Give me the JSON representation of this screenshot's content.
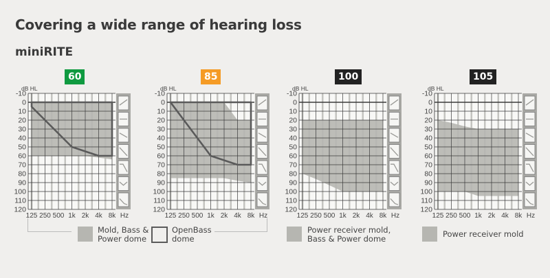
{
  "title": "Covering a wide range of hearing loss",
  "subtitle": "miniRITE",
  "colors": {
    "fill": "#b6b6b1",
    "outline": "#5a5a5a",
    "plot_bg": "#f8f8f6",
    "panel": "#a9a9a5",
    "grid": "#3a3a3a",
    "grid_light": "#c4c4c0"
  },
  "legend": [
    {
      "label_lines": [
        "Mold, Bass &",
        "Power dome"
      ],
      "style": "filled"
    },
    {
      "label_lines": [
        "OpenBass",
        "dome"
      ],
      "style": "outline"
    },
    {
      "label_lines": [
        "Power receiver mold,",
        "Bass & Power dome"
      ],
      "style": "filled"
    },
    {
      "label_lines": [
        "Power receiver mold"
      ],
      "style": "filled"
    }
  ],
  "panel_icons": [
    "rising-slope-icon",
    "flat-icon",
    "gentle-slope-icon",
    "steep-slope-icon",
    "ski-slope-icon",
    "cookie-bite-icon",
    "low-steep-icon"
  ],
  "chart_data": [
    {
      "type": "area",
      "badge": "60",
      "badge_color": "#0f9a40",
      "ylabel": "dB HL",
      "xlabel": "Hz",
      "x": [
        "125",
        "250",
        "500",
        "1k",
        "2k",
        "4k",
        "8k"
      ],
      "y_ticks": [
        -10,
        0,
        10,
        20,
        30,
        40,
        50,
        60,
        70,
        80,
        90,
        100,
        110,
        120
      ],
      "ylim": [
        -10,
        120
      ],
      "y_inverted": true,
      "grid": true,
      "series": [
        {
          "style": "filled",
          "top": [
            0,
            0,
            0,
            0,
            0,
            0,
            0
          ],
          "bottom": [
            60,
            60,
            60,
            60,
            60,
            62,
            64
          ]
        },
        {
          "style": "outline",
          "top": [
            0,
            0,
            0,
            0,
            0,
            0,
            0
          ],
          "bottom": [
            5,
            20,
            35,
            50,
            55,
            60,
            60
          ]
        }
      ]
    },
    {
      "type": "area",
      "badge": "85",
      "badge_color": "#f59b25",
      "ylabel": "dB HL",
      "xlabel": "Hz",
      "x": [
        "125",
        "250",
        "500",
        "1k",
        "2k",
        "4k",
        "8k"
      ],
      "y_ticks": [
        -10,
        0,
        10,
        20,
        30,
        40,
        50,
        60,
        70,
        80,
        90,
        100,
        110,
        120
      ],
      "ylim": [
        -10,
        120
      ],
      "y_inverted": true,
      "grid": true,
      "series": [
        {
          "style": "filled",
          "top": [
            0,
            0,
            0,
            0,
            0,
            20,
            20
          ],
          "bottom": [
            85,
            85,
            85,
            85,
            85,
            88,
            90
          ]
        },
        {
          "style": "outline",
          "top": [
            0,
            0,
            0,
            0,
            0,
            0,
            0
          ],
          "bottom": [
            0,
            20,
            40,
            60,
            65,
            70,
            70
          ]
        }
      ]
    },
    {
      "type": "area",
      "badge": "100",
      "badge_color": "#222222",
      "ylabel": "dB HL",
      "xlabel": "Hz",
      "x": [
        "125",
        "250",
        "500",
        "1k",
        "2k",
        "4k",
        "8k"
      ],
      "y_ticks": [
        -10,
        0,
        10,
        20,
        30,
        40,
        50,
        60,
        70,
        80,
        90,
        100,
        110,
        120
      ],
      "ylim": [
        -10,
        120
      ],
      "y_inverted": true,
      "grid": true,
      "series": [
        {
          "style": "filled",
          "top": [
            20,
            20,
            20,
            20,
            20,
            20,
            20
          ],
          "bottom": [
            80,
            86,
            93,
            100,
            100,
            100,
            100
          ]
        }
      ]
    },
    {
      "type": "area",
      "badge": "105",
      "badge_color": "#222222",
      "ylabel": "dB HL",
      "xlabel": "Hz",
      "x": [
        "125",
        "250",
        "500",
        "1k",
        "2k",
        "4k",
        "8k"
      ],
      "y_ticks": [
        -10,
        0,
        10,
        20,
        30,
        40,
        50,
        60,
        70,
        80,
        90,
        100,
        110,
        120
      ],
      "ylim": [
        -10,
        120
      ],
      "y_inverted": true,
      "grid": true,
      "series": [
        {
          "style": "filled",
          "top": [
            20,
            23,
            27,
            30,
            30,
            30,
            30
          ],
          "bottom": [
            100,
            100,
            100,
            105,
            105,
            105,
            105
          ]
        }
      ]
    }
  ]
}
